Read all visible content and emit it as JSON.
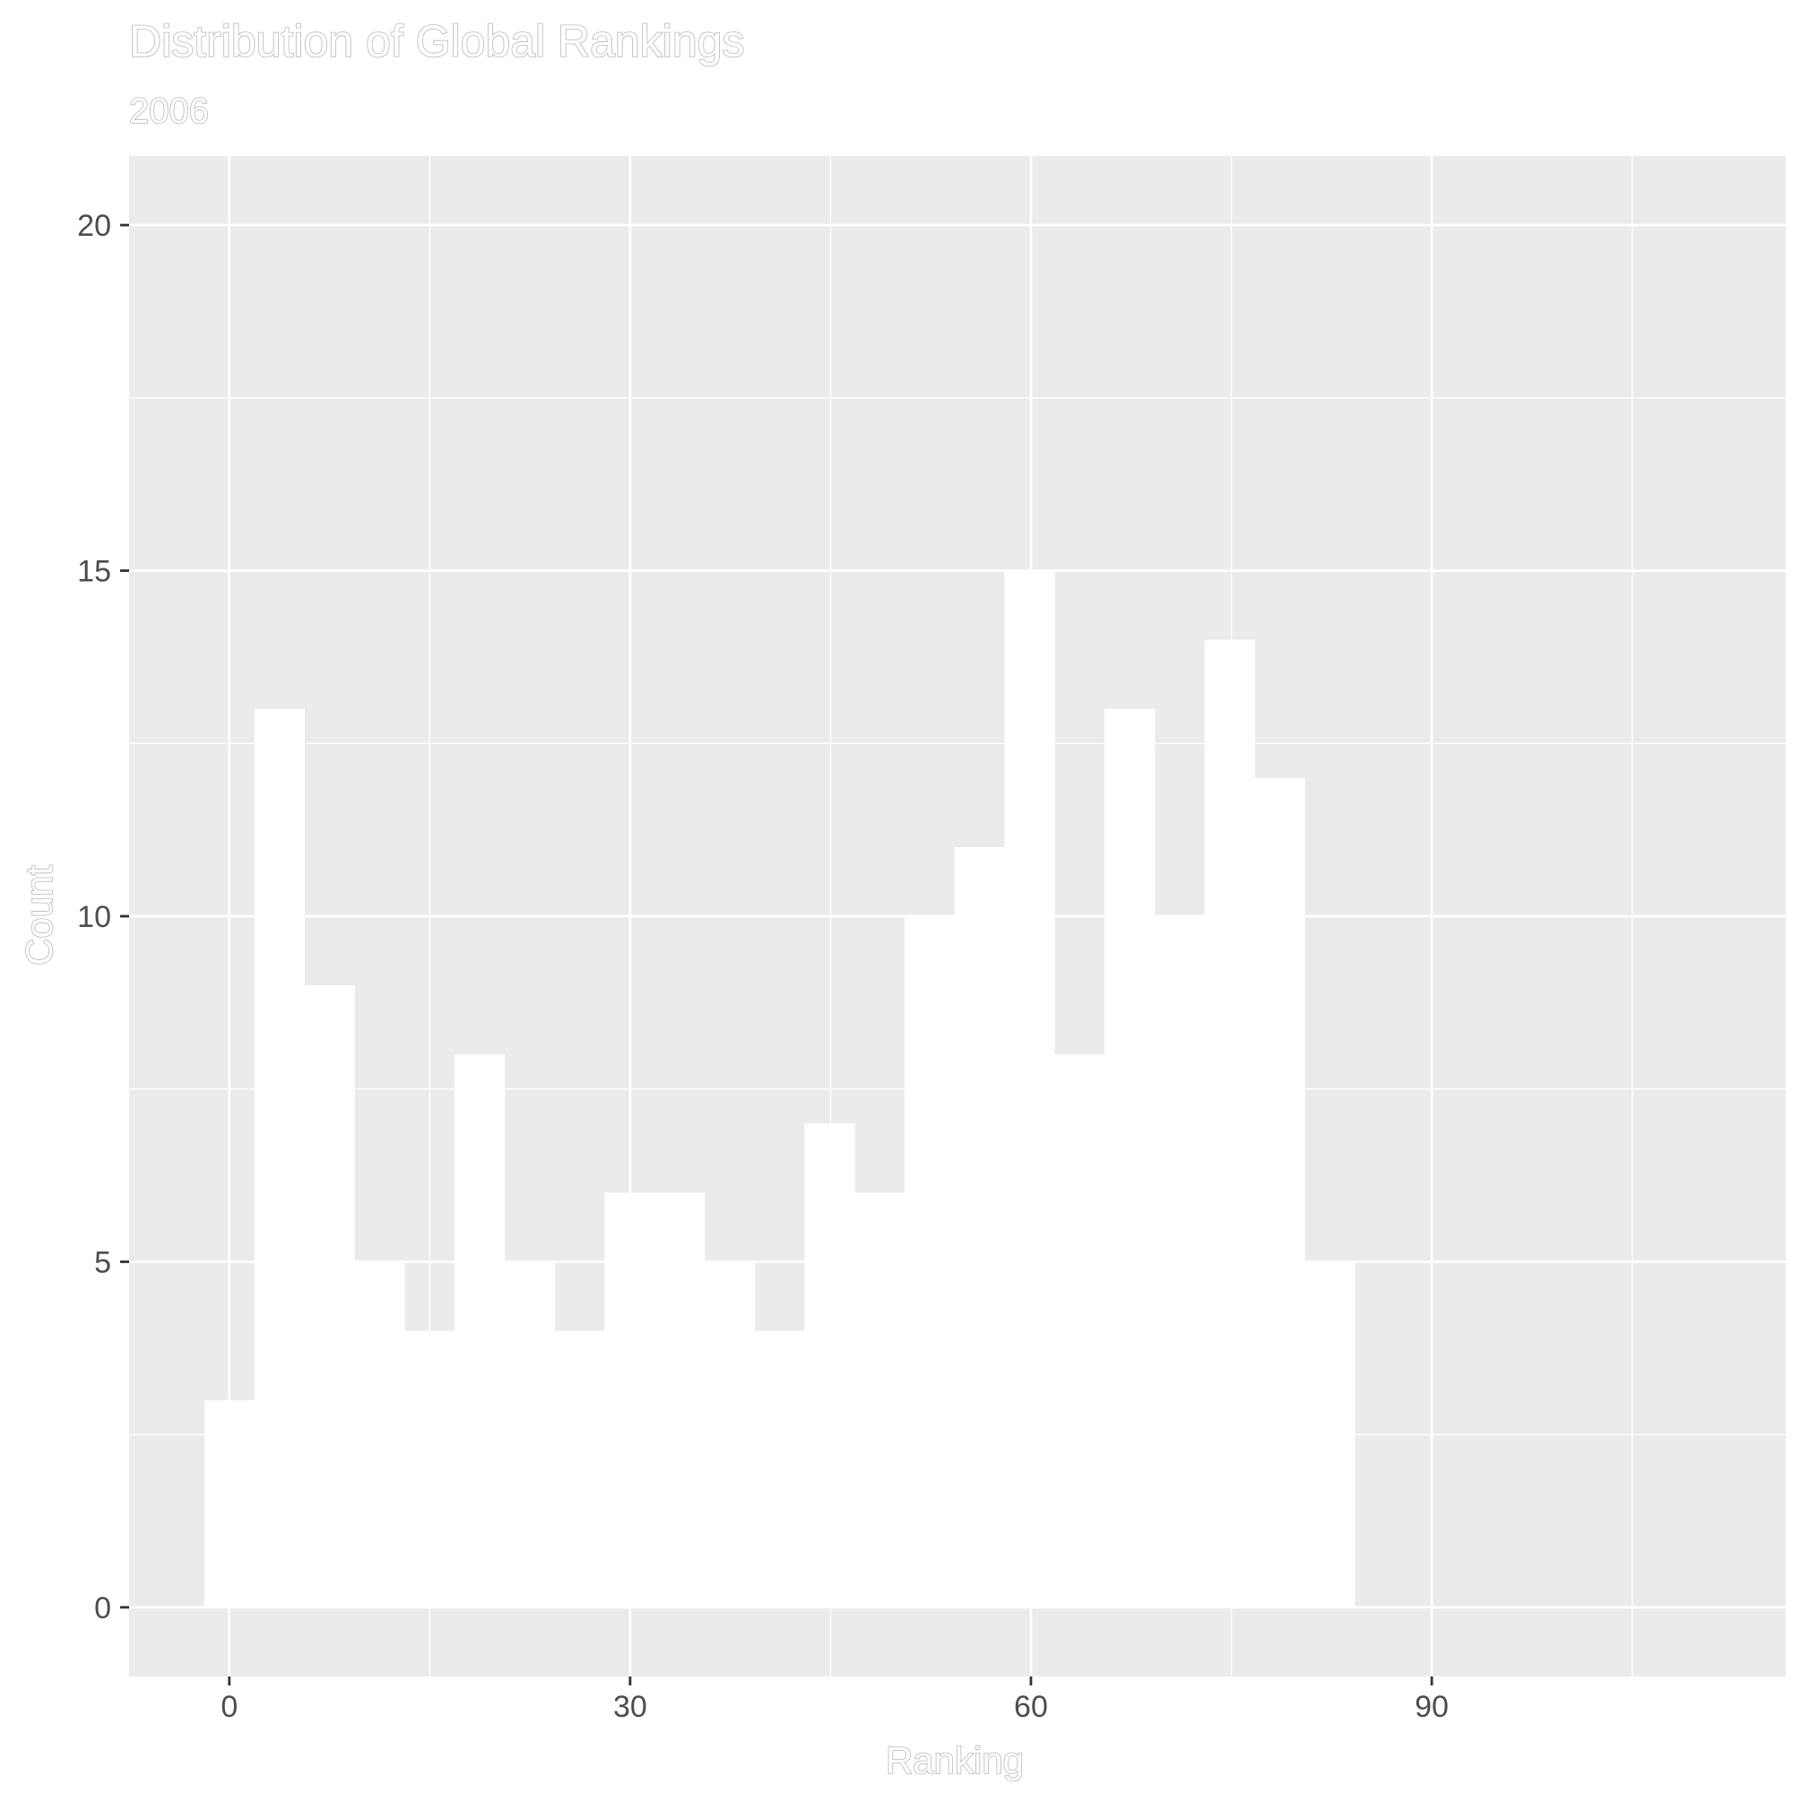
{
  "chart_data": {
    "type": "bar",
    "title": "Distribution of Global Rankings",
    "subtitle": "2006",
    "xlabel": "Ranking",
    "ylabel": "Count",
    "x_ticks": [
      0,
      30,
      60,
      90
    ],
    "y_ticks": [
      0,
      5,
      10,
      15,
      20
    ],
    "xlim": [
      -7.5,
      116.5
    ],
    "ylim": [
      -1,
      21
    ],
    "grid": true,
    "background": "#ebebeb",
    "bar_color": "#ffffff",
    "bin_width": 3.74,
    "bins": [
      {
        "x": 0.0,
        "count": 3
      },
      {
        "x": 3.74,
        "count": 13
      },
      {
        "x": 7.49,
        "count": 9
      },
      {
        "x": 11.23,
        "count": 5
      },
      {
        "x": 14.97,
        "count": 4
      },
      {
        "x": 18.72,
        "count": 8
      },
      {
        "x": 22.46,
        "count": 5
      },
      {
        "x": 26.2,
        "count": 4
      },
      {
        "x": 29.95,
        "count": 6
      },
      {
        "x": 33.69,
        "count": 6
      },
      {
        "x": 37.43,
        "count": 5
      },
      {
        "x": 41.18,
        "count": 4
      },
      {
        "x": 44.92,
        "count": 7
      },
      {
        "x": 48.66,
        "count": 6
      },
      {
        "x": 52.41,
        "count": 10
      },
      {
        "x": 56.15,
        "count": 11
      },
      {
        "x": 59.89,
        "count": 15
      },
      {
        "x": 63.64,
        "count": 8
      },
      {
        "x": 67.38,
        "count": 13
      },
      {
        "x": 71.12,
        "count": 10
      },
      {
        "x": 74.87,
        "count": 14
      },
      {
        "x": 78.61,
        "count": 12
      },
      {
        "x": 82.35,
        "count": 5
      }
    ]
  }
}
